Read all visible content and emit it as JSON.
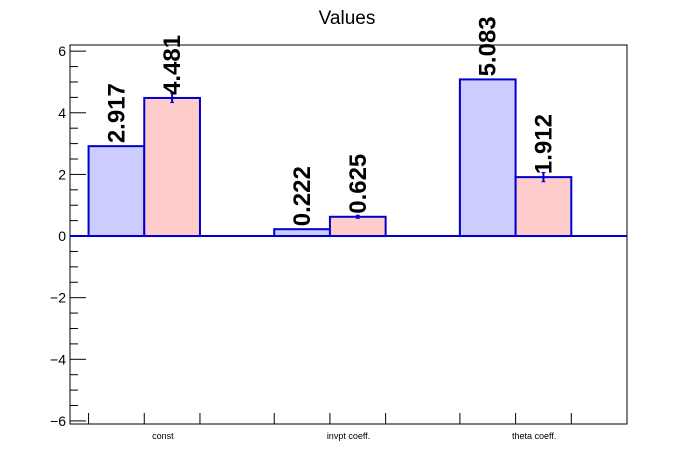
{
  "chart_data": {
    "type": "bar",
    "title": "Values",
    "xlabel": "",
    "ylabel": "",
    "categories": [
      "const",
      "invpt coeff.",
      "theta coeff."
    ],
    "series": [
      {
        "values": [
          2.917,
          0.222,
          5.083
        ],
        "errors": [
          0.0,
          0.0,
          0.0
        ],
        "labels": [
          "2.917",
          "0.222",
          "5.083"
        ],
        "fill": "#ccccff",
        "stroke": "#0000cc"
      },
      {
        "values": [
          4.481,
          0.625,
          1.912
        ],
        "errors": [
          0.15,
          0.05,
          0.15
        ],
        "labels": [
          "4.481",
          "0.625",
          "1.912"
        ],
        "fill": "#ffcccc",
        "stroke": "#0000cc"
      }
    ],
    "ylim": [
      -6.1,
      6.2
    ],
    "yticks": [
      -6,
      -4,
      -2,
      0,
      2,
      4,
      6
    ],
    "ytick_labels": [
      "−6",
      "−4",
      "−2",
      "0",
      "2",
      "4",
      "6"
    ],
    "grid": false,
    "legend": "none",
    "baseline_color": "#0000cc"
  }
}
